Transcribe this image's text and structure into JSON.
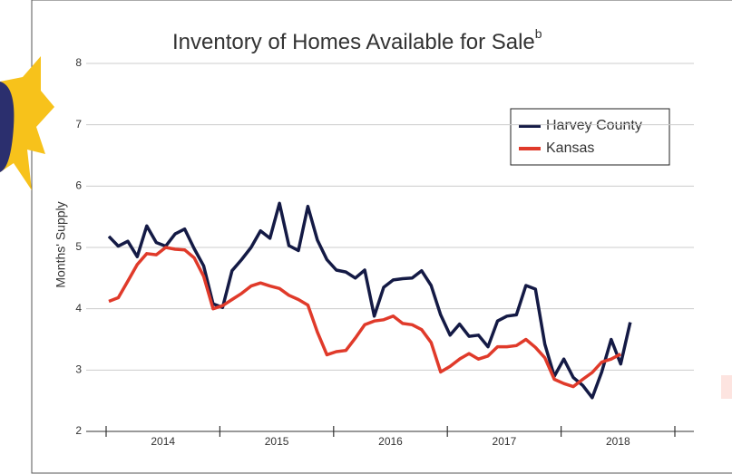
{
  "chart_data": {
    "type": "line",
    "title": "Inventory of Homes Available for Sale",
    "title_note": "b",
    "y_label": "Months' Supply",
    "categories": [
      null,
      null,
      null,
      null,
      null,
      null,
      "2014",
      null,
      null,
      null,
      null,
      null,
      null,
      null,
      null,
      null,
      null,
      null,
      "2015",
      null,
      null,
      null,
      null,
      null,
      null,
      null,
      null,
      null,
      null,
      null,
      "2016",
      null,
      null,
      null,
      null,
      null,
      null,
      null,
      null,
      null,
      null,
      null,
      "2017",
      null,
      null,
      null,
      null,
      null,
      null,
      null,
      null,
      null,
      null,
      null,
      "2018",
      null
    ],
    "series": [
      {
        "name": "Harvey County",
        "color": "#141a45",
        "values": [
          5.18,
          5.02,
          5.1,
          4.85,
          5.35,
          5.08,
          5.02,
          5.22,
          5.3,
          4.98,
          4.7,
          4.08,
          4.02,
          4.62,
          4.8,
          5.0,
          5.27,
          5.15,
          5.72,
          5.03,
          4.95,
          5.67,
          5.12,
          4.8,
          4.63,
          4.6,
          4.5,
          4.63,
          3.88,
          4.35,
          4.47,
          4.49,
          4.5,
          4.62,
          4.38,
          3.9,
          3.57,
          3.75,
          3.55,
          3.57,
          3.38,
          3.8,
          3.88,
          3.9,
          4.38,
          4.32,
          3.42,
          2.9,
          3.18,
          2.88,
          2.75,
          2.55,
          2.97,
          3.5,
          3.1,
          3.78
        ]
      },
      {
        "name": "Kansas",
        "color": "#e03a2a",
        "values": [
          4.12,
          4.18,
          4.45,
          4.72,
          4.9,
          4.88,
          5.0,
          4.97,
          4.96,
          4.83,
          4.53,
          4.0,
          4.05,
          4.15,
          4.25,
          4.37,
          4.42,
          4.37,
          4.33,
          4.22,
          4.15,
          4.06,
          3.62,
          3.25,
          3.3,
          3.32,
          3.52,
          3.74,
          3.8,
          3.82,
          3.88,
          3.76,
          3.74,
          3.66,
          3.45,
          2.97,
          3.06,
          3.18,
          3.27,
          3.18,
          3.23,
          3.38,
          3.38,
          3.4,
          3.5,
          3.37,
          3.2,
          2.85,
          2.78,
          2.73,
          2.85,
          2.96,
          3.13,
          3.18,
          3.26,
          null
        ]
      }
    ],
    "ylim": [
      2,
      8
    ],
    "yticks": [
      2,
      3,
      4,
      5,
      6,
      7,
      8
    ],
    "grid": true,
    "legend": "upper right"
  }
}
